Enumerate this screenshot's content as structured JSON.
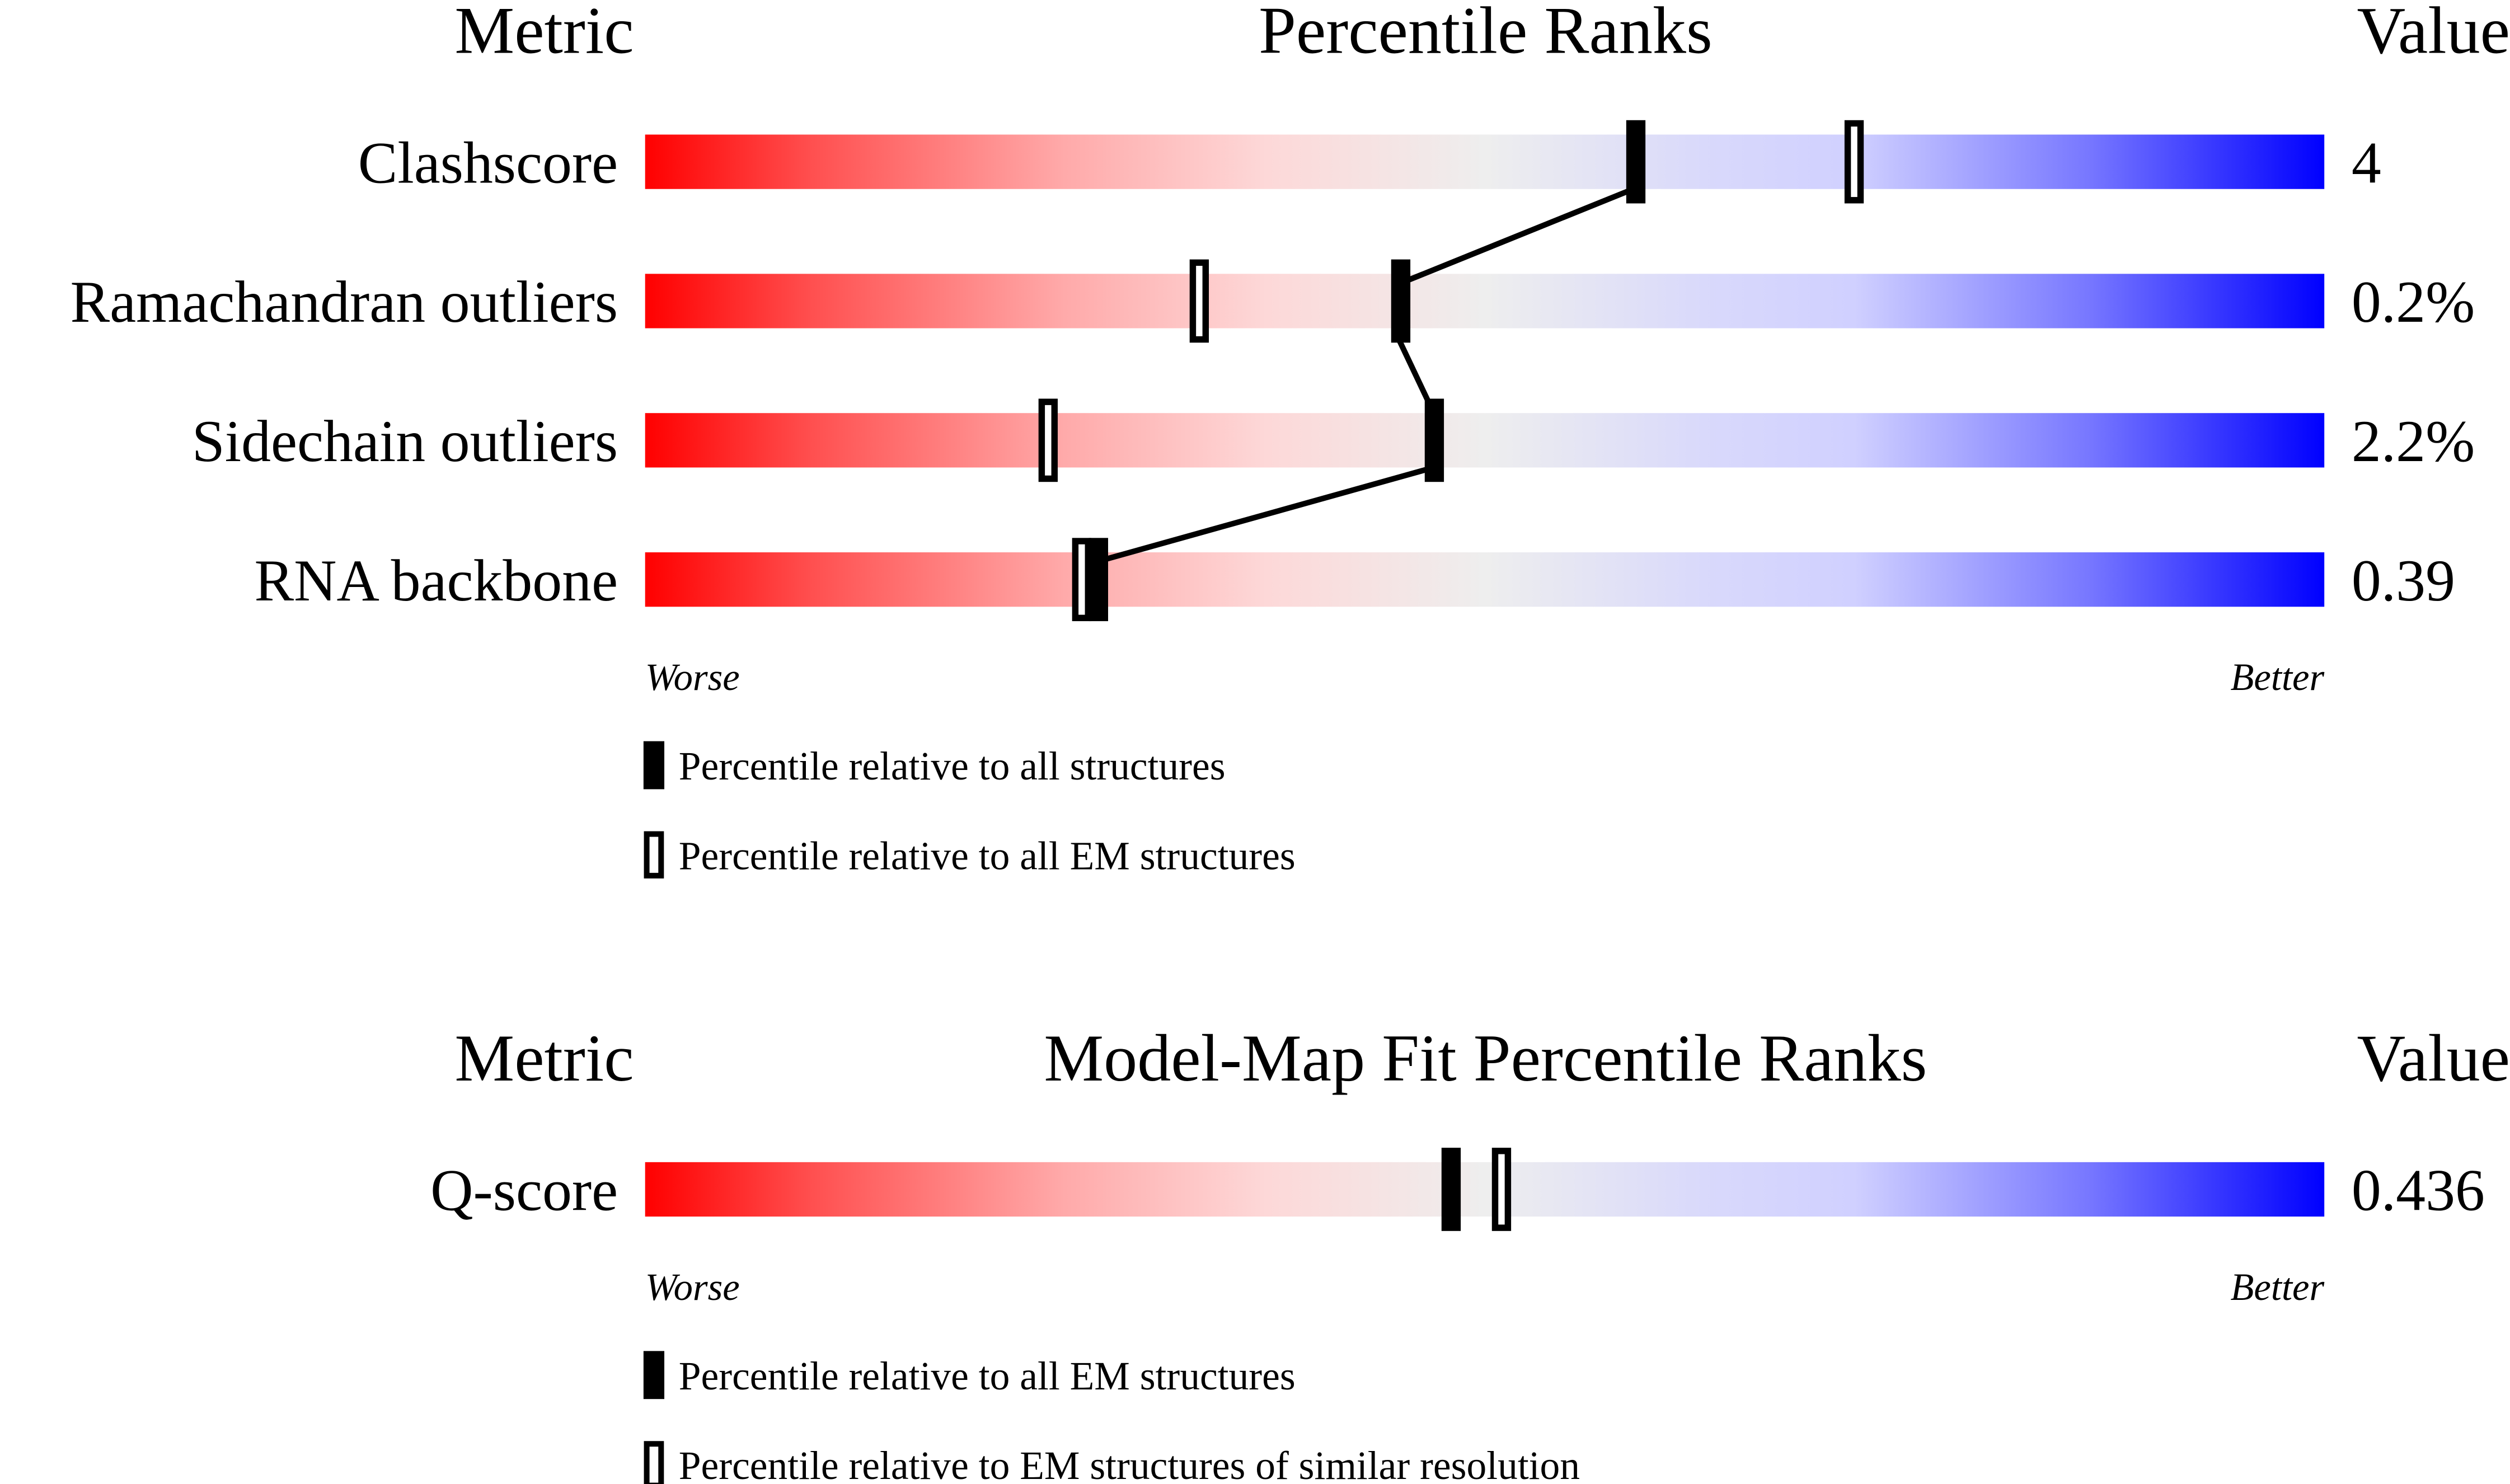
{
  "chart_data": [
    {
      "type": "percentile-slider",
      "headers": {
        "metric": "Metric",
        "title": "Percentile Ranks",
        "value": "Value"
      },
      "range": [
        0,
        100
      ],
      "worse_label": "Worse",
      "better_label": "Better",
      "rows": [
        {
          "metric": "Clashscore",
          "value": "4",
          "percentile_all": 59,
          "percentile_em": 72
        },
        {
          "metric": "Ramachandran outliers",
          "value": "0.2%",
          "percentile_all": 45,
          "percentile_em": 33
        },
        {
          "metric": "Sidechain outliers",
          "value": "2.2%",
          "percentile_all": 47,
          "percentile_em": 24
        },
        {
          "metric": "RNA backbone",
          "value": "0.39",
          "percentile_all": 27,
          "percentile_em": 26
        }
      ],
      "legend": [
        {
          "marker": "filled",
          "label": "Percentile relative to all structures"
        },
        {
          "marker": "open",
          "label": "Percentile relative to all EM structures"
        }
      ]
    },
    {
      "type": "percentile-slider",
      "headers": {
        "metric": "Metric",
        "title": "Model-Map Fit Percentile Ranks",
        "value": "Value"
      },
      "range": [
        0,
        100
      ],
      "worse_label": "Worse",
      "better_label": "Better",
      "rows": [
        {
          "metric": "Q-score",
          "value": "0.436",
          "percentile_all": 48,
          "percentile_em": 51
        }
      ],
      "legend": [
        {
          "marker": "filled",
          "label": "Percentile relative to all EM structures"
        },
        {
          "marker": "open",
          "label": "Percentile relative to EM structures of similar resolution"
        }
      ]
    }
  ],
  "colors": {
    "worse": "#ff0000",
    "middle": "#eeeeee",
    "better": "#0000ff",
    "marker": "#000000"
  }
}
